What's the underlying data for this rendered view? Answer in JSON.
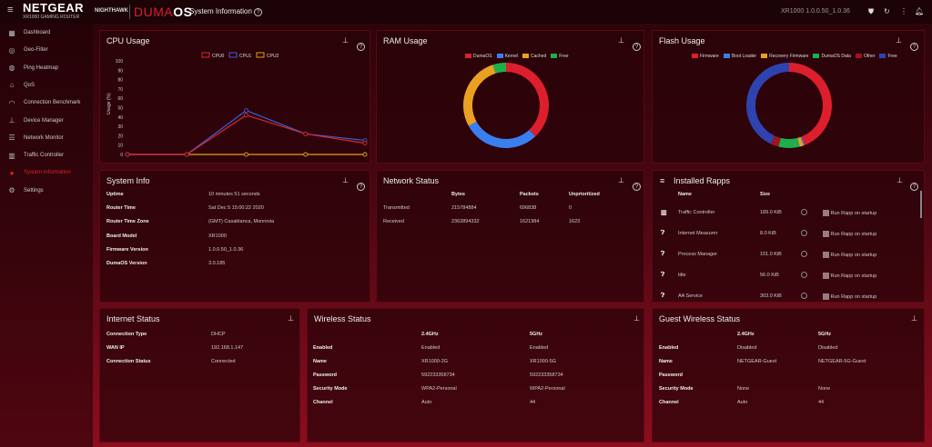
{
  "header": {
    "brand": "NETGEAR",
    "brand_sub": "XR1000 GAMING ROUTER",
    "nighthawk": "NIGHTHAWK",
    "duma_a": "DUMA",
    "duma_b": "OS",
    "page_title": "System Information",
    "version": "XR1000 1.0.0.50_1.0.36"
  },
  "sidebar": {
    "items": [
      {
        "label": "Dashboard",
        "icon": "dashboard-icon",
        "g": "▦"
      },
      {
        "label": "Geo-Filter",
        "icon": "geo-filter-icon",
        "g": "◎"
      },
      {
        "label": "Ping Heatmap",
        "icon": "ping-heatmap-icon",
        "g": "◍"
      },
      {
        "label": "QoS",
        "icon": "qos-icon",
        "g": "⌂"
      },
      {
        "label": "Connection Benchmark",
        "icon": "benchmark-icon",
        "g": "◠"
      },
      {
        "label": "Device Manager",
        "icon": "device-manager-icon",
        "g": "⊥"
      },
      {
        "label": "Network Monitor",
        "icon": "network-monitor-icon",
        "g": "☰"
      },
      {
        "label": "Traffic Controller",
        "icon": "traffic-controller-icon",
        "g": "▥"
      },
      {
        "label": "System Information",
        "icon": "system-information-icon",
        "g": "●",
        "active": true
      },
      {
        "label": "Settings",
        "icon": "settings-icon",
        "g": "⚙"
      }
    ]
  },
  "cpu": {
    "title": "CPU Usage"
  },
  "ram": {
    "title": "RAM Usage"
  },
  "flash": {
    "title": "Flash Usage"
  },
  "chart_data": [
    {
      "type": "line",
      "title": "CPU Usage",
      "ylabel": "Usage (%)",
      "ylim": [
        0,
        100
      ],
      "yticks": [
        "0",
        "10",
        "20",
        "30",
        "40",
        "50",
        "60",
        "70",
        "80",
        "90",
        "100"
      ],
      "x": [
        1,
        2,
        3,
        4,
        5
      ],
      "series": [
        {
          "name": "CPU0",
          "color": "#d42a36",
          "values": [
            0,
            0,
            42,
            22,
            12
          ]
        },
        {
          "name": "CPU1",
          "color": "#3a5fd8",
          "values": [
            0,
            0,
            47,
            22,
            15
          ]
        },
        {
          "name": "CPU2",
          "color": "#e0a020",
          "values": [
            0,
            0,
            0,
            0,
            0
          ]
        }
      ]
    },
    {
      "type": "pie",
      "title": "RAM Usage",
      "series": [
        {
          "name": "DumaOS",
          "color": "#dd1f2d",
          "value": 38
        },
        {
          "name": "Kernel",
          "color": "#3a7ff0",
          "value": 29
        },
        {
          "name": "Cached",
          "color": "#eaa022",
          "value": 28
        },
        {
          "name": "Free",
          "color": "#1fae4c",
          "value": 5
        }
      ]
    },
    {
      "type": "pie",
      "title": "Flash Usage",
      "series": [
        {
          "name": "Firmware",
          "color": "#dd1f2d",
          "value": 44
        },
        {
          "name": "Boot Loader",
          "color": "#3a7ff0",
          "value": 0.5
        },
        {
          "name": "Recovery Firmware",
          "color": "#eaa022",
          "value": 1.5
        },
        {
          "name": "DumaOS Data",
          "color": "#1fae4c",
          "value": 8
        },
        {
          "name": "Other",
          "color": "#a0141f",
          "value": 3
        },
        {
          "name": "Free",
          "color": "#2e43b0",
          "value": 43
        }
      ]
    }
  ],
  "sysinfo": {
    "title": "System Info",
    "rows": [
      [
        "Uptime",
        "10 minutes 51 seconds"
      ],
      [
        "Router Time",
        "Sat Dec 5 15:00:22 2020"
      ],
      [
        "Router Time Zone",
        "(GMT) Casablanca, Monrovia"
      ],
      [
        "Board Model",
        "XR1000"
      ],
      [
        "Firmware Version",
        "1.0.0.50_1.0.36"
      ],
      [
        "DumaOS Version",
        "3.0.185"
      ]
    ]
  },
  "network": {
    "title": "Network Status",
    "cols": [
      "Bytes",
      "Packets",
      "Unprioritized"
    ],
    "rows": [
      [
        "Transmitted",
        "215784884",
        "696838",
        "0"
      ],
      [
        "Received",
        "2363894332",
        "1621984",
        "1623"
      ]
    ]
  },
  "rapps": {
    "title": "Installed Rapps",
    "cols": [
      "Name",
      "Size"
    ],
    "startup_label": "Run Rapp on startup",
    "rows": [
      [
        "Traffic Controller",
        "189.0 KiB"
      ],
      [
        "Internet Measurer",
        "8.0 KiB"
      ],
      [
        "Process Manager",
        "101.0 KiB"
      ],
      [
        "title",
        "56.0 KiB"
      ],
      [
        "AA Service",
        "303.0 KiB"
      ]
    ]
  },
  "internet": {
    "title": "Internet Status",
    "rows": [
      [
        "Connection Type",
        "DHCP"
      ],
      [
        "WAN IP",
        "192.168.1.147"
      ],
      [
        "Connection Status",
        "Connected"
      ]
    ]
  },
  "wireless": {
    "title": "Wireless Status",
    "cols": [
      "2.4GHz",
      "5GHz"
    ],
    "rows": [
      [
        "Enabled",
        "Enabled",
        "Enabled"
      ],
      [
        "Name",
        "XR1000-2G",
        "XR1000-5G"
      ],
      [
        "Password",
        "592233358734",
        "592233358734"
      ],
      [
        "Security Mode",
        "WPA2-Personal",
        "WPA2-Personal"
      ],
      [
        "Channel",
        "Auto",
        "44"
      ]
    ]
  },
  "guest": {
    "title": "Guest Wireless Status",
    "cols": [
      "2.4GHz",
      "5GHz"
    ],
    "rows": [
      [
        "Enabled",
        "Disabled",
        "Disabled"
      ],
      [
        "Name",
        "NETGEAR-Guest",
        "NETGEAR-5G-Guest"
      ],
      [
        "Password",
        "",
        ""
      ],
      [
        "Security Mode",
        "None",
        "None"
      ],
      [
        "Channel",
        "Auto",
        "44"
      ]
    ]
  }
}
